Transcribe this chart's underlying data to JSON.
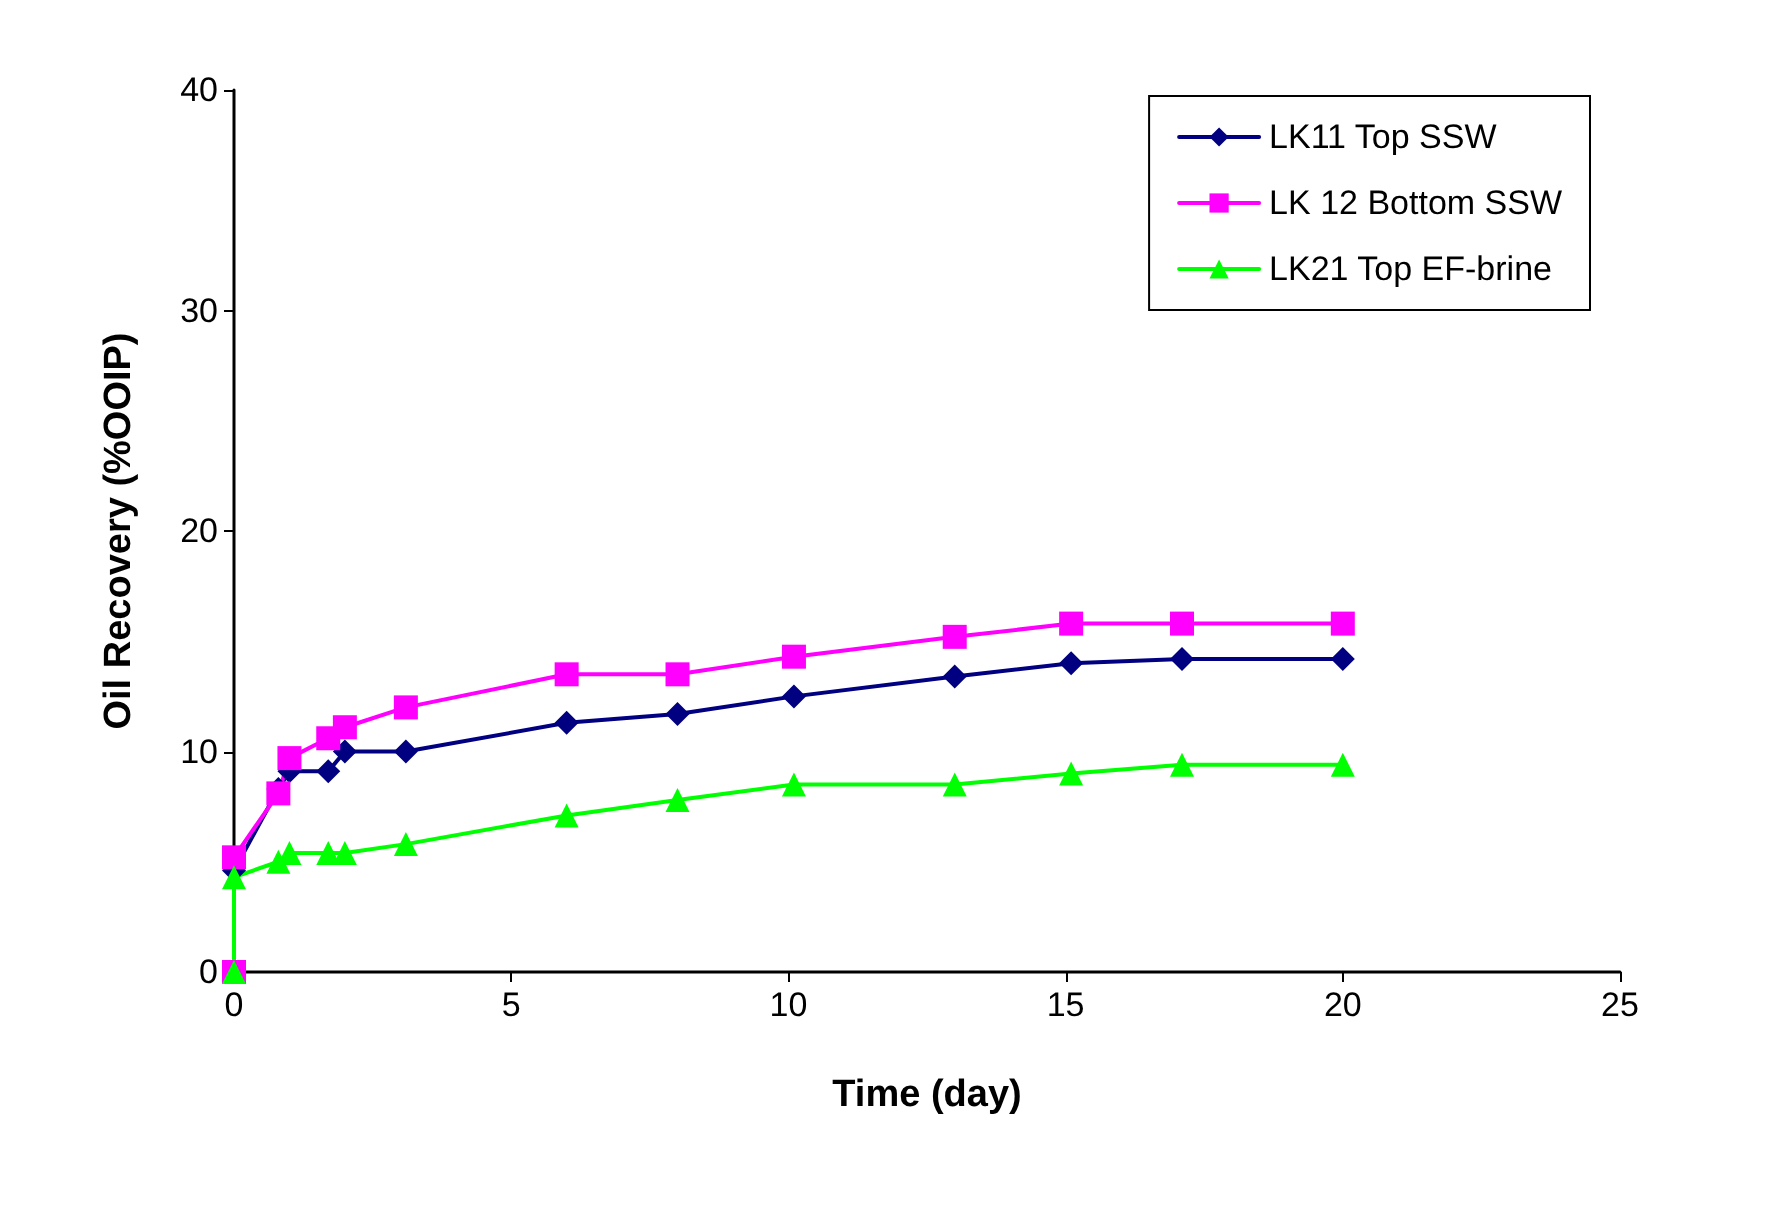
{
  "chart_data": {
    "type": "line",
    "xlabel": "Time (day)",
    "ylabel": "Oil Recovery (%OOIP)",
    "x": [
      0,
      0,
      0.8,
      1,
      1.7,
      2,
      3.1,
      6,
      8,
      10.1,
      13,
      15.1,
      17.1,
      20
    ],
    "series": [
      {
        "name": "LK11 Top SSW",
        "color": "#000080",
        "marker": "diamond",
        "values": [
          0,
          4.6,
          8.3,
          9.1,
          9.1,
          10.0,
          10.0,
          11.3,
          11.7,
          12.5,
          13.4,
          14.0,
          14.2,
          14.2
        ]
      },
      {
        "name": "LK 12 Bottom SSW",
        "color": "#ff00ff",
        "marker": "square",
        "values": [
          0,
          5.2,
          8.1,
          9.7,
          10.6,
          11.1,
          12.0,
          13.5,
          13.5,
          14.3,
          15.2,
          15.8,
          15.8,
          15.8
        ]
      },
      {
        "name": "LK21 Top EF-brine",
        "color": "#00ff00",
        "marker": "triangle",
        "values": [
          0,
          4.3,
          5.0,
          5.4,
          5.4,
          5.4,
          5.8,
          7.1,
          7.8,
          8.5,
          8.5,
          9.0,
          9.4,
          9.4
        ]
      }
    ],
    "xlim": [
      0,
      25
    ],
    "xticks": [
      0,
      5,
      10,
      15,
      20,
      25
    ],
    "ylim": [
      0,
      40
    ],
    "yticks": [
      0,
      10,
      20,
      30,
      40
    ],
    "grid": false,
    "legend": "top right",
    "line_style": "solid"
  }
}
